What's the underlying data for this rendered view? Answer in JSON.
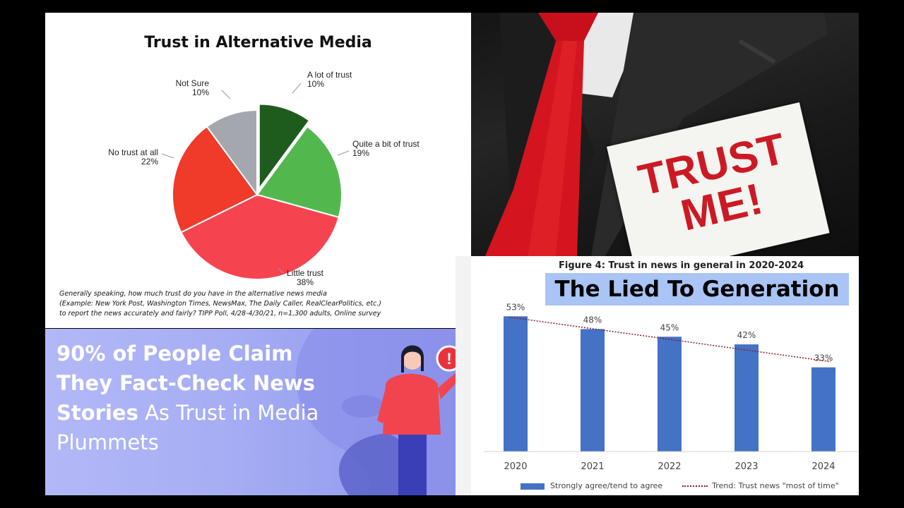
{
  "chart_data": [
    {
      "type": "pie",
      "title": "Trust in Alternative Media",
      "categories": [
        "A lot of trust",
        "Quite a bit of trust",
        "Little trust",
        "No trust at all",
        "Not Sure"
      ],
      "values": [
        10,
        19,
        38,
        22,
        10
      ],
      "value_labels": [
        "10%",
        "19%",
        "38%",
        "22%",
        "10%"
      ],
      "colors": [
        "#1e5c1e",
        "#52b84e",
        "#f54450",
        "#f03a2a",
        "#a4a8ae"
      ],
      "exploded": "A lot of trust",
      "footnote": [
        "Generally speaking, how much trust do you have in the alternative news  media",
        "(Example: New York Post, Washington Times, NewsMax, The Daily  Caller, RealClearPolitics, etc.)",
        "to report the news accurately and  fairly? TIPP Poll, 4/28-4/30/21, n=1,300 adults, Online survey"
      ]
    },
    {
      "type": "bar",
      "title": "Figure 4: Trust in news in general in 2020-2024",
      "overlay_title": "The Lied To Generation",
      "categories": [
        "2020",
        "2021",
        "2022",
        "2023",
        "2024"
      ],
      "series": [
        {
          "name": "Strongly agree/tend to agree",
          "values": [
            53,
            48,
            45,
            42,
            33
          ],
          "color": "#4472c4"
        }
      ],
      "value_labels": [
        "53%",
        "48%",
        "45%",
        "42%",
        "33%"
      ],
      "trend": {
        "name": "Trend: Trust news \"most of time\"",
        "style": "dotted",
        "color": "#8b1c2a"
      },
      "ylim": [
        0,
        60
      ],
      "grid": false,
      "legend": "bottom"
    }
  ],
  "photo": {
    "card_text": [
      "TRUST",
      "ME!"
    ]
  },
  "promo": {
    "bold_text": "90% of People Claim They Fact-Check News Stories",
    "regular_text": " As Trust in Media Plummets",
    "icon": "exclamation-icon"
  }
}
